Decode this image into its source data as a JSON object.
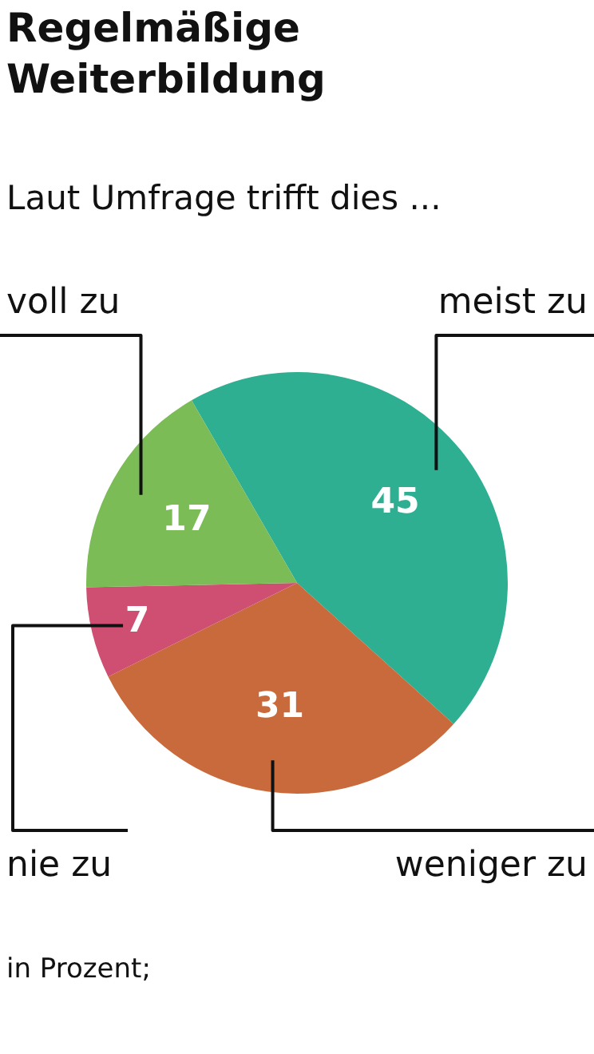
{
  "chart_data": {
    "type": "pie",
    "title": "Regelmäßige Weiterbildung",
    "subtitle": "Laut Umfrage trifft dies ...",
    "categories": [
      "meist zu",
      "weniger zu",
      "nie zu",
      "voll zu"
    ],
    "values": [
      45,
      31,
      7,
      17
    ],
    "colors": [
      "#2eaf91",
      "#c96a3c",
      "#cf4f73",
      "#7cbc56"
    ],
    "data_labels": true,
    "annotations": [
      "in Prozent;"
    ]
  }
}
